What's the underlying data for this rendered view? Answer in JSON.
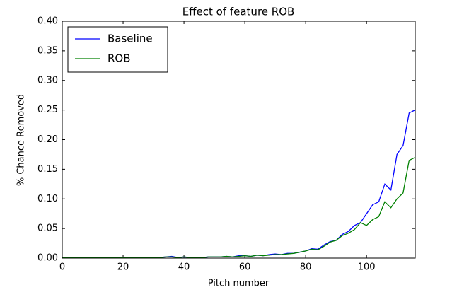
{
  "chart_data": {
    "type": "line",
    "title": "Effect of feature ROB",
    "xlabel": "Pitch number",
    "ylabel": "% Chance Removed",
    "x": [
      0,
      2,
      4,
      6,
      8,
      10,
      12,
      14,
      16,
      18,
      20,
      22,
      24,
      26,
      28,
      30,
      32,
      34,
      36,
      38,
      40,
      42,
      44,
      46,
      48,
      50,
      52,
      54,
      56,
      58,
      60,
      62,
      64,
      66,
      68,
      70,
      72,
      74,
      76,
      78,
      80,
      82,
      84,
      86,
      88,
      90,
      92,
      94,
      96,
      98,
      100,
      102,
      104,
      106,
      108,
      110,
      112,
      114,
      116
    ],
    "series": [
      {
        "name": "Baseline",
        "color": "#0000ff",
        "values": [
          0.001,
          0.001,
          0.001,
          0.001,
          0.001,
          0.001,
          0.001,
          0.001,
          0.001,
          0.001,
          0.001,
          0.001,
          0.001,
          0.001,
          0.001,
          0.001,
          0.001,
          0.002,
          0.003,
          0.001,
          0.002,
          0.001,
          0.001,
          0.001,
          0.002,
          0.002,
          0.002,
          0.003,
          0.002,
          0.004,
          0.004,
          0.003,
          0.005,
          0.004,
          0.006,
          0.007,
          0.006,
          0.008,
          0.008,
          0.01,
          0.012,
          0.016,
          0.015,
          0.022,
          0.028,
          0.03,
          0.04,
          0.045,
          0.055,
          0.06,
          0.075,
          0.09,
          0.095,
          0.125,
          0.115,
          0.175,
          0.19,
          0.245,
          0.25
        ]
      },
      {
        "name": "ROB",
        "color": "#008000",
        "values": [
          0.001,
          0.001,
          0.001,
          0.001,
          0.001,
          0.001,
          0.001,
          0.001,
          0.001,
          0.001,
          0.001,
          0.001,
          0.001,
          0.001,
          0.001,
          0.001,
          0.001,
          0.002,
          0.002,
          0.001,
          0.002,
          0.001,
          0.001,
          0.001,
          0.002,
          0.002,
          0.002,
          0.003,
          0.002,
          0.003,
          0.004,
          0.003,
          0.005,
          0.004,
          0.005,
          0.006,
          0.006,
          0.007,
          0.008,
          0.01,
          0.012,
          0.015,
          0.014,
          0.02,
          0.027,
          0.03,
          0.038,
          0.042,
          0.048,
          0.06,
          0.055,
          0.065,
          0.07,
          0.095,
          0.085,
          0.1,
          0.11,
          0.165,
          0.17
        ]
      }
    ],
    "xlim": [
      0,
      116
    ],
    "xticks": [
      0,
      20,
      40,
      60,
      80,
      100
    ],
    "ylim": [
      0,
      0.4
    ],
    "yticks": [
      {
        "value": 0,
        "label": "0.00"
      },
      {
        "value": 0.05,
        "label": "0.05"
      },
      {
        "value": 0.1,
        "label": "0.10"
      },
      {
        "value": 0.15,
        "label": "0.15"
      },
      {
        "value": 0.2,
        "label": "0.20"
      },
      {
        "value": 0.25,
        "label": "0.25"
      },
      {
        "value": 0.3,
        "label": "0.30"
      },
      {
        "value": 0.35,
        "label": "0.35"
      },
      {
        "value": 0.4,
        "label": "0.40"
      }
    ],
    "legend": "upper-left"
  }
}
